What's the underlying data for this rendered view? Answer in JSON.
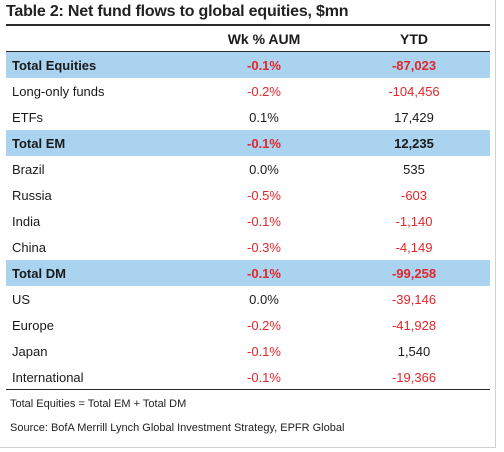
{
  "table": {
    "title": "Table 2: Net fund flows to global equities, $mn",
    "columns": {
      "wk": "Wk % AUM",
      "ytd": "YTD"
    },
    "rows": [
      {
        "name": "Total Equities",
        "wk": "-0.1%",
        "ytd": "-87,023",
        "total": true,
        "wk_neg": true,
        "ytd_neg": true
      },
      {
        "name": "Long-only funds",
        "wk": "-0.2%",
        "ytd": "-104,456",
        "total": false,
        "wk_neg": true,
        "ytd_neg": true
      },
      {
        "name": "ETFs",
        "wk": "0.1%",
        "ytd": "17,429",
        "total": false,
        "wk_neg": false,
        "ytd_neg": false
      },
      {
        "name": "Total EM",
        "wk": "-0.1%",
        "ytd": "12,235",
        "total": true,
        "wk_neg": true,
        "ytd_neg": false
      },
      {
        "name": "Brazil",
        "wk": "0.0%",
        "ytd": "535",
        "total": false,
        "wk_neg": false,
        "ytd_neg": false
      },
      {
        "name": "Russia",
        "wk": "-0.5%",
        "ytd": "-603",
        "total": false,
        "wk_neg": true,
        "ytd_neg": true
      },
      {
        "name": "India",
        "wk": "-0.1%",
        "ytd": "-1,140",
        "total": false,
        "wk_neg": true,
        "ytd_neg": true
      },
      {
        "name": "China",
        "wk": "-0.3%",
        "ytd": "-4,149",
        "total": false,
        "wk_neg": true,
        "ytd_neg": true
      },
      {
        "name": "Total DM",
        "wk": "-0.1%",
        "ytd": "-99,258",
        "total": true,
        "wk_neg": true,
        "ytd_neg": true
      },
      {
        "name": "US",
        "wk": "0.0%",
        "ytd": "-39,146",
        "total": false,
        "wk_neg": false,
        "ytd_neg": true
      },
      {
        "name": "Europe",
        "wk": "-0.2%",
        "ytd": "-41,928",
        "total": false,
        "wk_neg": true,
        "ytd_neg": true
      },
      {
        "name": "Japan",
        "wk": "-0.1%",
        "ytd": "1,540",
        "total": false,
        "wk_neg": true,
        "ytd_neg": false
      },
      {
        "name": "International",
        "wk": "-0.1%",
        "ytd": "-19,366",
        "total": false,
        "wk_neg": true,
        "ytd_neg": true
      }
    ],
    "note": "Total Equities = Total EM + Total DM",
    "source": "Source: BofA Merrill Lynch Global Investment Strategy, EPFR Global"
  },
  "colors": {
    "total_row_bg": "#a9d3ef",
    "negative": "#e3262a",
    "text": "#1a1a1a"
  }
}
